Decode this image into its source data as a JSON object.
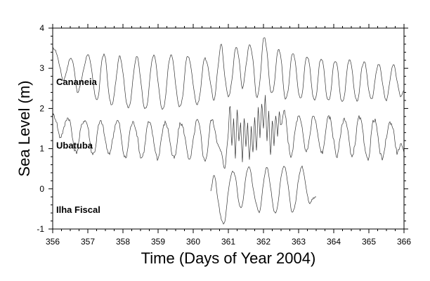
{
  "chart_data": {
    "type": "line",
    "title": "",
    "xlabel": "Time (Days of Year 2004)",
    "ylabel": "Sea Level (m)",
    "xlim": [
      356,
      366
    ],
    "ylim": [
      -1,
      4
    ],
    "x_ticks": [
      "356",
      "357",
      "358",
      "359",
      "360",
      "361",
      "362",
      "363",
      "364",
      "365",
      "366"
    ],
    "y_ticks": [
      "-1",
      "0",
      "1",
      "2",
      "3",
      "4"
    ],
    "grid": false,
    "colors": {
      "series": "#333333",
      "axis": "#000000",
      "background": "#ffffff"
    },
    "series": [
      {
        "name": "Cananeia",
        "label_anchor": [
          356.1,
          2.58
        ],
        "x": [
          356.0,
          356.1,
          356.2,
          356.3,
          356.4,
          356.5,
          356.6,
          356.7,
          356.8,
          356.9,
          357.0,
          357.1,
          357.2,
          357.3,
          357.4,
          357.5,
          357.6,
          357.7,
          357.8,
          357.9,
          358.0,
          358.1,
          358.2,
          358.3,
          358.4,
          358.5,
          358.6,
          358.7,
          358.8,
          358.9,
          359.0,
          359.1,
          359.2,
          359.3,
          359.4,
          359.5,
          359.6,
          359.7,
          359.8,
          359.9,
          360.0,
          360.1,
          360.2,
          360.3,
          360.4,
          360.5,
          360.6,
          360.7,
          360.8,
          360.9,
          361.0,
          361.1,
          361.2,
          361.3,
          361.4,
          361.5,
          361.6,
          361.7,
          361.8,
          361.9,
          362.0,
          362.1,
          362.2,
          362.3,
          362.4,
          362.5,
          362.6,
          362.7,
          362.8,
          362.9,
          363.0,
          363.1,
          363.2,
          363.3,
          363.4,
          363.5,
          363.6,
          363.7,
          363.8,
          363.9,
          364.0,
          364.1,
          364.2,
          364.3,
          364.4,
          364.5,
          364.6,
          364.7,
          364.8,
          364.9,
          365.0,
          365.1,
          365.2,
          365.3,
          365.4,
          365.5,
          365.6,
          365.7,
          365.8,
          365.9,
          366.0
        ],
        "y": [
          3.5,
          3.4,
          3.05,
          2.7,
          2.95,
          3.25,
          3.05,
          2.4,
          2.65,
          3.05,
          3.35,
          3.0,
          2.35,
          2.3,
          3.2,
          3.25,
          2.35,
          2.1,
          2.7,
          3.3,
          2.9,
          2.15,
          2.1,
          2.85,
          3.3,
          2.75,
          2.05,
          2.15,
          3.05,
          3.3,
          2.65,
          2.0,
          2.2,
          3.1,
          3.3,
          2.6,
          2.05,
          2.3,
          3.2,
          3.2,
          2.6,
          2.1,
          2.4,
          3.2,
          3.1,
          2.6,
          2.2,
          3.0,
          3.6,
          2.8,
          2.3,
          2.7,
          3.5,
          3.25,
          2.5,
          3.05,
          3.6,
          3.2,
          2.3,
          2.7,
          3.75,
          3.4,
          2.45,
          2.55,
          3.4,
          3.25,
          2.3,
          2.45,
          3.3,
          3.2,
          2.4,
          2.35,
          3.2,
          3.15,
          2.35,
          2.3,
          3.15,
          3.1,
          2.3,
          2.3,
          3.1,
          3.05,
          2.25,
          2.3,
          3.1,
          3.1,
          2.35,
          2.25,
          3.0,
          3.1,
          2.45,
          2.25,
          2.85,
          3.1,
          2.55,
          2.2,
          2.7,
          3.1,
          2.7,
          2.3,
          2.45
        ]
      },
      {
        "name": "Ubatuba",
        "label_anchor": [
          356.1,
          1.0
        ],
        "x": [
          356.0,
          356.1,
          356.2,
          356.3,
          356.4,
          356.5,
          356.6,
          356.7,
          356.8,
          356.9,
          357.0,
          357.1,
          357.2,
          357.3,
          357.4,
          357.5,
          357.6,
          357.7,
          357.8,
          357.9,
          358.0,
          358.1,
          358.2,
          358.3,
          358.4,
          358.5,
          358.6,
          358.7,
          358.8,
          358.9,
          359.0,
          359.1,
          359.2,
          359.3,
          359.4,
          359.5,
          359.6,
          359.7,
          359.8,
          359.9,
          360.0,
          360.1,
          360.2,
          360.3,
          360.4,
          360.5,
          360.6,
          360.7,
          360.8,
          360.9,
          361.0,
          361.05,
          361.1,
          361.15,
          361.2,
          361.25,
          361.3,
          361.35,
          361.4,
          361.45,
          361.5,
          361.55,
          361.6,
          361.65,
          361.7,
          361.75,
          361.8,
          361.85,
          361.9,
          361.95,
          362.0,
          362.05,
          362.1,
          362.15,
          362.2,
          362.25,
          362.3,
          362.35,
          362.4,
          362.45,
          362.5,
          362.6,
          362.7,
          362.8,
          362.9,
          363.0,
          363.1,
          363.2,
          363.3,
          363.4,
          363.5,
          363.6,
          363.7,
          363.8,
          363.9,
          364.0,
          364.1,
          364.2,
          364.3,
          364.4,
          364.5,
          364.6,
          364.7,
          364.8,
          364.9,
          365.0,
          365.1,
          365.2,
          365.3,
          365.4,
          365.5,
          365.6,
          365.7,
          365.8,
          365.9,
          366.0
        ],
        "y": [
          1.85,
          1.7,
          1.3,
          1.45,
          1.75,
          1.65,
          1.05,
          0.95,
          1.5,
          1.7,
          1.55,
          0.95,
          0.95,
          1.55,
          1.65,
          1.2,
          0.85,
          1.2,
          1.65,
          1.6,
          0.95,
          0.8,
          1.45,
          1.65,
          1.35,
          0.8,
          0.95,
          1.6,
          1.55,
          1.05,
          0.75,
          1.3,
          1.65,
          1.4,
          0.85,
          0.85,
          1.55,
          1.55,
          1.1,
          0.7,
          1.2,
          1.7,
          1.45,
          0.75,
          0.9,
          1.7,
          1.55,
          1.1,
          0.9,
          0.55,
          1.4,
          2.1,
          1.05,
          1.75,
          0.8,
          2.0,
          1.2,
          1.6,
          0.7,
          1.8,
          1.05,
          1.6,
          0.7,
          1.55,
          0.9,
          1.75,
          0.95,
          2.05,
          1.3,
          2.15,
          1.5,
          2.3,
          1.2,
          1.9,
          0.85,
          1.7,
          1.1,
          1.85,
          1.3,
          1.9,
          1.55,
          1.95,
          1.2,
          0.8,
          1.45,
          1.8,
          1.5,
          0.95,
          1.2,
          1.8,
          1.6,
          1.05,
          0.95,
          1.65,
          1.75,
          1.2,
          0.8,
          1.4,
          1.75,
          1.45,
          0.8,
          1.1,
          1.75,
          1.6,
          0.9,
          0.8,
          1.6,
          1.65,
          1.0,
          0.75,
          1.3,
          1.65,
          1.45,
          0.9,
          1.1,
          0.9
        ]
      },
      {
        "name": "Ilha Fiscal",
        "label_anchor": [
          356.1,
          -0.6
        ],
        "x": [
          360.5,
          360.6,
          360.7,
          360.8,
          360.9,
          361.0,
          361.1,
          361.2,
          361.3,
          361.4,
          361.5,
          361.6,
          361.7,
          361.8,
          361.9,
          362.0,
          362.1,
          362.2,
          362.3,
          362.4,
          362.5,
          362.6,
          362.7,
          362.8,
          362.9,
          363.0,
          363.1,
          363.2,
          363.3,
          363.4,
          363.5
        ],
        "y": [
          -0.05,
          0.35,
          -0.25,
          -0.75,
          -0.8,
          -0.05,
          0.4,
          0.3,
          -0.35,
          -0.4,
          0.3,
          0.55,
          0.05,
          -0.4,
          -0.55,
          0.15,
          0.55,
          0.05,
          -0.55,
          -0.45,
          0.3,
          0.55,
          0.1,
          -0.55,
          -0.4,
          0.25,
          0.55,
          0.1,
          -0.35,
          -0.25,
          -0.2
        ]
      }
    ]
  }
}
